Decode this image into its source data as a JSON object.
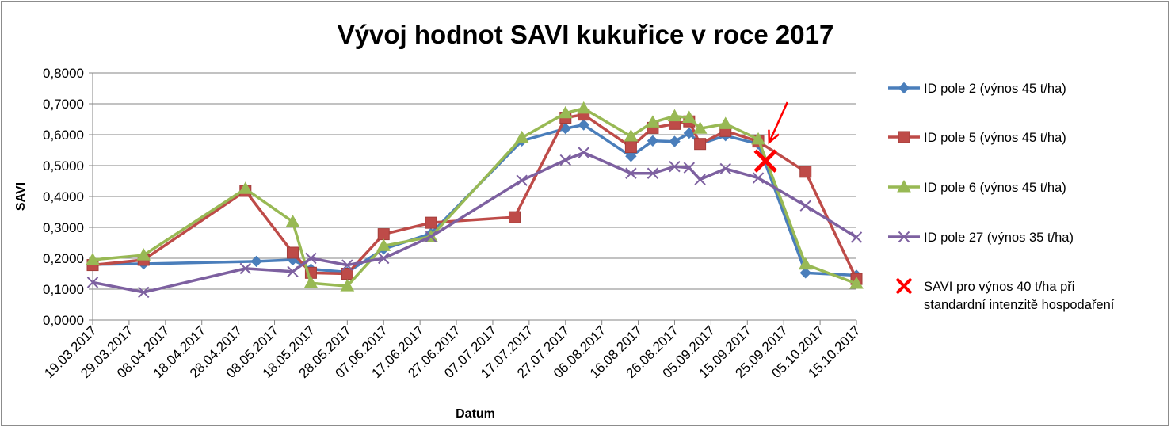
{
  "chart_data": {
    "type": "line",
    "title": "Vývoj hodnot SAVI kukuřice v roce 2017",
    "xlabel": "Datum",
    "ylabel": "SAVI",
    "ylim": [
      0,
      0.8
    ],
    "yticks": [
      "0,0000",
      "0,1000",
      "0,2000",
      "0,3000",
      "0,4000",
      "0,5000",
      "0,6000",
      "0,7000",
      "0,8000"
    ],
    "xlim": [
      "2017-03-19",
      "2017-10-15"
    ],
    "xticks": [
      "19.03.2017",
      "29.03.2017",
      "08.04.2017",
      "18.04.2017",
      "28.04.2017",
      "08.05.2017",
      "18.05.2017",
      "28.05.2017",
      "07.06.2017",
      "17.06.2017",
      "27.06.2017",
      "07.07.2017",
      "17.07.2017",
      "27.07.2017",
      "06.08.2017",
      "16.08.2017",
      "26.08.2017",
      "05.09.2017",
      "15.09.2017",
      "25.09.2017",
      "05.10.2017",
      "15.10.2017"
    ],
    "grid": "horizontal",
    "legend_position": "right",
    "series": [
      {
        "name": "ID pole 2 (výnos 45 t/ha)",
        "color": "#4a7ebb",
        "marker": "diamond",
        "points": [
          [
            "2017-03-19",
            0.18
          ],
          [
            "2017-03-33",
            0.182
          ],
          [
            "2017-05-03",
            0.19
          ],
          [
            "2017-05-13",
            0.195
          ],
          [
            "2017-05-18",
            0.165
          ],
          [
            "2017-05-28",
            0.155
          ],
          [
            "2017-06-07",
            0.23
          ],
          [
            "2017-06-20",
            0.28
          ],
          [
            "2017-07-15",
            0.58
          ],
          [
            "2017-07-27",
            0.62
          ],
          [
            "2017-08-01",
            0.632
          ],
          [
            "2017-08-14",
            0.53
          ],
          [
            "2017-08-20",
            0.58
          ],
          [
            "2017-08-26",
            0.578
          ],
          [
            "2017-08-30",
            0.605
          ],
          [
            "2017-09-02",
            0.57
          ],
          [
            "2017-09-09",
            0.597
          ],
          [
            "2017-09-18",
            0.57
          ],
          [
            "2017-10-01",
            0.153
          ],
          [
            "2017-10-15",
            0.145
          ]
        ]
      },
      {
        "name": "ID pole 5 (výnos 45 t/ha)",
        "color": "#be4b48",
        "marker": "square",
        "points": [
          [
            "2017-03-19",
            0.178
          ],
          [
            "2017-03-33",
            0.195
          ],
          [
            "2017-04-30",
            0.418
          ],
          [
            "2017-05-13",
            0.218
          ],
          [
            "2017-05-18",
            0.153
          ],
          [
            "2017-05-28",
            0.15
          ],
          [
            "2017-06-07",
            0.278
          ],
          [
            "2017-06-20",
            0.315
          ],
          [
            "2017-07-13",
            0.333
          ],
          [
            "2017-07-27",
            0.655
          ],
          [
            "2017-08-01",
            0.665
          ],
          [
            "2017-08-14",
            0.56
          ],
          [
            "2017-08-20",
            0.622
          ],
          [
            "2017-08-26",
            0.635
          ],
          [
            "2017-08-30",
            0.643
          ],
          [
            "2017-09-02",
            0.57
          ],
          [
            "2017-09-09",
            0.612
          ],
          [
            "2017-09-18",
            0.578
          ],
          [
            "2017-10-01",
            0.48
          ],
          [
            "2017-10-15",
            0.133
          ]
        ]
      },
      {
        "name": "ID pole 6 (výnos 45 t/ha)",
        "color": "#98b954",
        "marker": "triangle",
        "points": [
          [
            "2017-03-19",
            0.195
          ],
          [
            "2017-03-33",
            0.21
          ],
          [
            "2017-04-30",
            0.425
          ],
          [
            "2017-05-13",
            0.318
          ],
          [
            "2017-05-18",
            0.12
          ],
          [
            "2017-05-28",
            0.11
          ],
          [
            "2017-06-07",
            0.24
          ],
          [
            "2017-06-20",
            0.27
          ],
          [
            "2017-07-15",
            0.59
          ],
          [
            "2017-07-27",
            0.67
          ],
          [
            "2017-08-01",
            0.685
          ],
          [
            "2017-08-14",
            0.595
          ],
          [
            "2017-08-20",
            0.64
          ],
          [
            "2017-08-26",
            0.66
          ],
          [
            "2017-08-30",
            0.655
          ],
          [
            "2017-09-02",
            0.62
          ],
          [
            "2017-09-09",
            0.635
          ],
          [
            "2017-09-18",
            0.585
          ],
          [
            "2017-10-01",
            0.18
          ],
          [
            "2017-10-15",
            0.118
          ]
        ]
      },
      {
        "name": "ID pole 27 (výnos 35 t/ha)",
        "color": "#7d60a0",
        "marker": "x",
        "points": [
          [
            "2017-03-19",
            0.122
          ],
          [
            "2017-03-33",
            0.09
          ],
          [
            "2017-04-30",
            0.167
          ],
          [
            "2017-05-13",
            0.157
          ],
          [
            "2017-05-18",
            0.2
          ],
          [
            "2017-05-28",
            0.178
          ],
          [
            "2017-06-07",
            0.2
          ],
          [
            "2017-06-20",
            0.27
          ],
          [
            "2017-07-15",
            0.452
          ],
          [
            "2017-07-27",
            0.518
          ],
          [
            "2017-08-01",
            0.542
          ],
          [
            "2017-08-14",
            0.475
          ],
          [
            "2017-08-20",
            0.475
          ],
          [
            "2017-08-26",
            0.497
          ],
          [
            "2017-08-30",
            0.493
          ],
          [
            "2017-09-02",
            0.455
          ],
          [
            "2017-09-09",
            0.49
          ],
          [
            "2017-09-18",
            0.46
          ],
          [
            "2017-10-01",
            0.37
          ],
          [
            "2017-10-15",
            0.268
          ]
        ]
      },
      {
        "name": "SAVI pro výnos 40 t/ha při standardní intenzitě hospodaření",
        "name_lines": [
          "SAVI pro výnos 40 t/ha při",
          "standardní intenzitě hospodaření"
        ],
        "color": "#ff0000",
        "marker": "bigx",
        "points": [
          [
            "2017-09-20",
            0.515
          ]
        ]
      }
    ],
    "annotation": {
      "type": "arrow",
      "color": "#ff0000",
      "from": [
        "2017-09-26",
        0.705
      ],
      "to": [
        "2017-09-21",
        0.575
      ]
    }
  }
}
